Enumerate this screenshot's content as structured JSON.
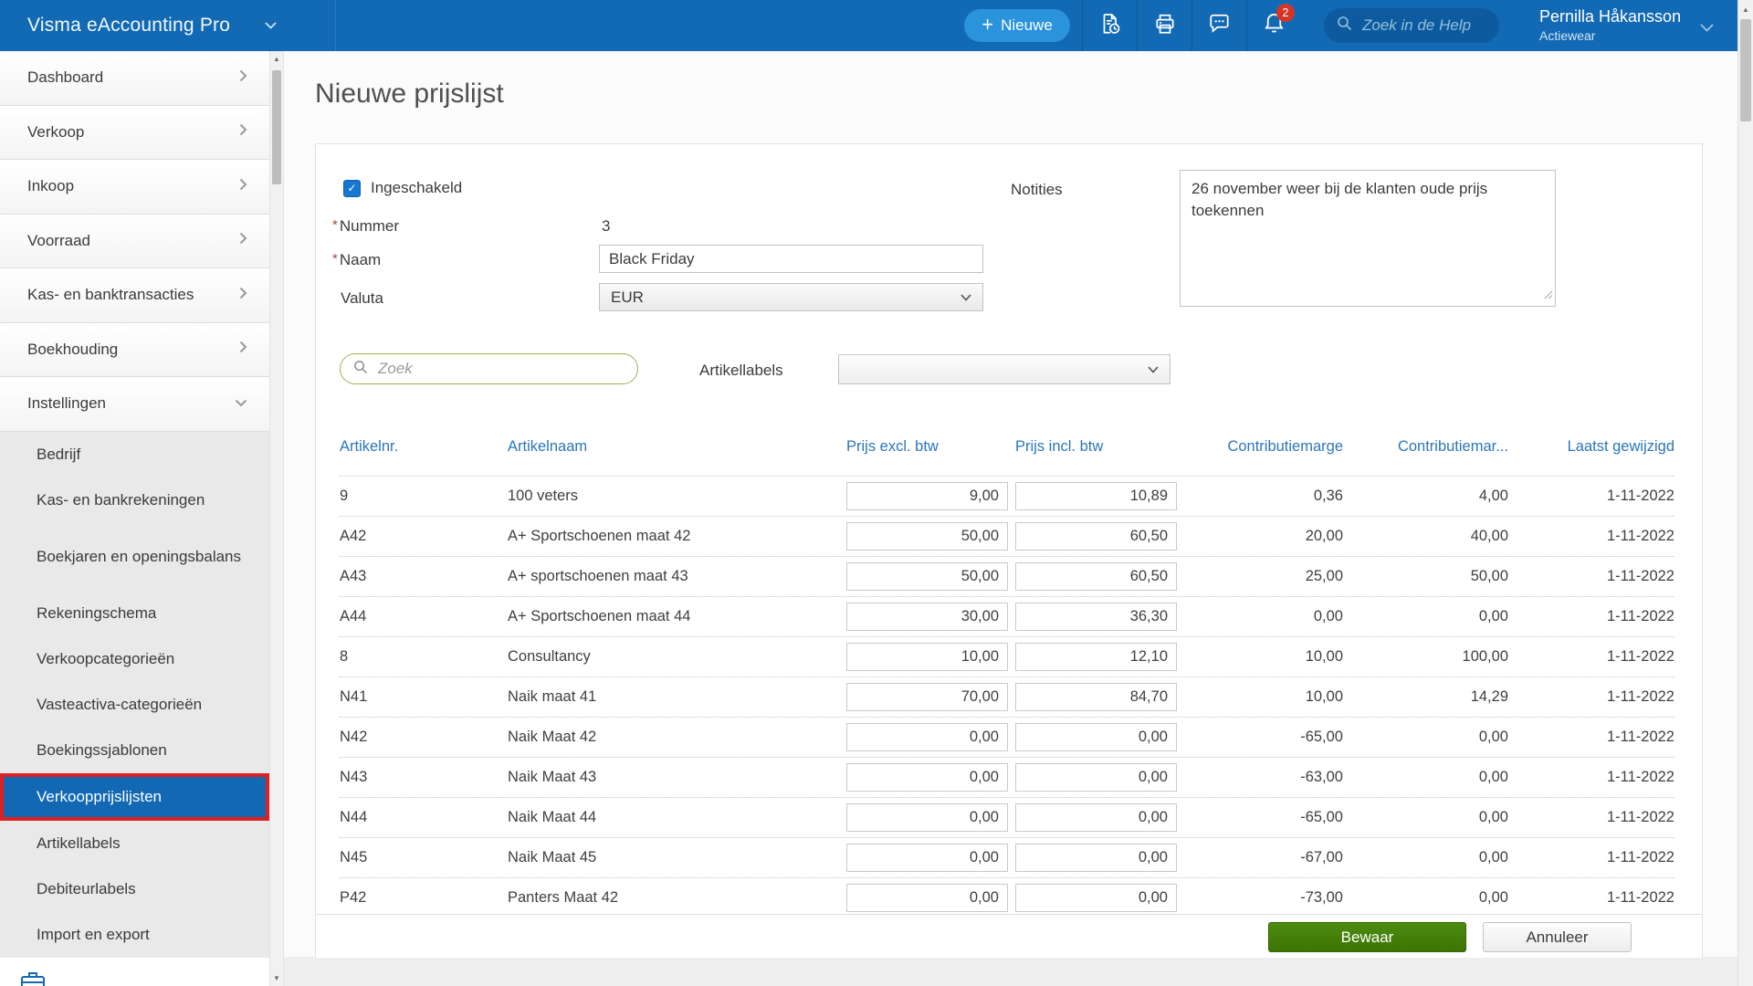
{
  "topbar": {
    "app_title": "Visma eAccounting Pro",
    "new_button_label": "Nieuwe",
    "help_search_placeholder": "Zoek in de Help",
    "notification_count": "2",
    "user_name": "Pernilla Håkansson",
    "user_company": "Actiewear"
  },
  "sidebar": {
    "items": [
      {
        "label": "Dashboard"
      },
      {
        "label": "Verkoop"
      },
      {
        "label": "Inkoop"
      },
      {
        "label": "Voorraad"
      },
      {
        "label": "Kas- en banktransacties"
      },
      {
        "label": "Boekhouding"
      },
      {
        "label": "Instellingen",
        "expanded": true
      }
    ],
    "settings_sub_items": [
      {
        "label": "Bedrijf"
      },
      {
        "label": "Kas- en bankrekeningen"
      },
      {
        "label": "Boekjaren en openingsbalans",
        "two_line": true
      },
      {
        "label": "Rekeningschema"
      },
      {
        "label": "Verkoopcategorieën"
      },
      {
        "label": "Vasteactiva-categorieën"
      },
      {
        "label": "Boekingssjablonen"
      },
      {
        "label": "Verkoopprijslijsten",
        "active": true,
        "highlighted": true
      },
      {
        "label": "Artikellabels"
      },
      {
        "label": "Debiteurlabels"
      },
      {
        "label": "Import en export"
      }
    ]
  },
  "page": {
    "title": "Nieuwe prijslijst",
    "required_marker": "*",
    "form": {
      "enabled_label": "Ingeschakeld",
      "enabled_checked": true,
      "number_label": "Nummer",
      "number_value": "3",
      "name_label": "Naam",
      "name_value": "Black Friday",
      "currency_label": "Valuta",
      "currency_value": "EUR",
      "notes_label": "Notities",
      "notes_value": "26 november weer bij de klanten oude prijs toekennen"
    },
    "filter": {
      "search_placeholder": "Zoek",
      "labels_label": "Artikellabels",
      "labels_value": ""
    },
    "table": {
      "columns": [
        "Artikelnr.",
        "Artikelnaam",
        "Prijs excl. btw",
        "Prijs incl. btw",
        "Contributiemarge",
        "Contributiemar...",
        "Laatst gewijzigd"
      ],
      "rows": [
        {
          "nr": "9",
          "naam": "100 veters",
          "prijs_excl": "9,00",
          "prijs_incl": "10,89",
          "marge": "0,36",
          "marge_pct": "4,00",
          "gewijzigd": "1-11-2022"
        },
        {
          "nr": "A42",
          "naam": "A+ Sportschoenen maat 42",
          "prijs_excl": "50,00",
          "prijs_incl": "60,50",
          "marge": "20,00",
          "marge_pct": "40,00",
          "gewijzigd": "1-11-2022"
        },
        {
          "nr": "A43",
          "naam": "A+ sportschoenen maat 43",
          "prijs_excl": "50,00",
          "prijs_incl": "60,50",
          "marge": "25,00",
          "marge_pct": "50,00",
          "gewijzigd": "1-11-2022"
        },
        {
          "nr": "A44",
          "naam": "A+ Sportschoenen maat 44",
          "prijs_excl": "30,00",
          "prijs_incl": "36,30",
          "marge": "0,00",
          "marge_pct": "0,00",
          "gewijzigd": "1-11-2022"
        },
        {
          "nr": "8",
          "naam": "Consultancy",
          "prijs_excl": "10,00",
          "prijs_incl": "12,10",
          "marge": "10,00",
          "marge_pct": "100,00",
          "gewijzigd": "1-11-2022"
        },
        {
          "nr": "N41",
          "naam": "Naik maat 41",
          "prijs_excl": "70,00",
          "prijs_incl": "84,70",
          "marge": "10,00",
          "marge_pct": "14,29",
          "gewijzigd": "1-11-2022"
        },
        {
          "nr": "N42",
          "naam": "Naik Maat 42",
          "prijs_excl": "0,00",
          "prijs_incl": "0,00",
          "marge": "-65,00",
          "marge_pct": "0,00",
          "gewijzigd": "1-11-2022"
        },
        {
          "nr": "N43",
          "naam": "Naik Maat 43",
          "prijs_excl": "0,00",
          "prijs_incl": "0,00",
          "marge": "-63,00",
          "marge_pct": "0,00",
          "gewijzigd": "1-11-2022"
        },
        {
          "nr": "N44",
          "naam": "Naik Maat 44",
          "prijs_excl": "0,00",
          "prijs_incl": "0,00",
          "marge": "-65,00",
          "marge_pct": "0,00",
          "gewijzigd": "1-11-2022"
        },
        {
          "nr": "N45",
          "naam": "Naik Maat 45",
          "prijs_excl": "0,00",
          "prijs_incl": "0,00",
          "marge": "-67,00",
          "marge_pct": "0,00",
          "gewijzigd": "1-11-2022"
        },
        {
          "nr": "P42",
          "naam": "Panters Maat 42",
          "prijs_excl": "0,00",
          "prijs_incl": "0,00",
          "marge": "-73,00",
          "marge_pct": "0,00",
          "gewijzigd": "1-11-2022"
        }
      ]
    },
    "footer": {
      "save_label": "Bewaar",
      "cancel_label": "Annuleer"
    }
  },
  "colors": {
    "topbar_blue": "#1269b4",
    "active_item_blue": "#1268b3",
    "highlight_red": "#e02020",
    "save_green": "#3d7404",
    "badge_red": "#d43527",
    "table_header_blue": "#2b76b9",
    "search_border_green": "#9fb054"
  }
}
